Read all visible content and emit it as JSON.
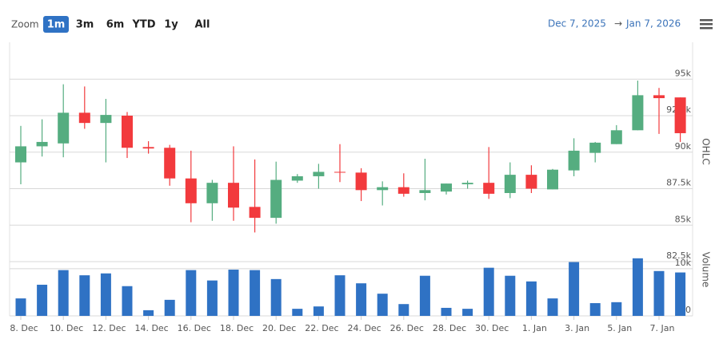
{
  "toolbar": {
    "zoom_label": "Zoom",
    "buttons": [
      "1m",
      "3m",
      "6m",
      "YTD",
      "1y",
      "All"
    ],
    "selected": 0,
    "range_from": "Dec 7, 2025",
    "range_arrow": "→",
    "range_to": "Jan 7, 2026"
  },
  "chart_data": {
    "type": "candlestick",
    "categories": [
      "8. Dec",
      null,
      "10. Dec",
      null,
      "12. Dec",
      null,
      "14. Dec",
      null,
      "16. Dec",
      null,
      "18. Dec",
      null,
      "20. Dec",
      null,
      "22. Dec",
      null,
      "24. Dec",
      null,
      "26. Dec",
      null,
      "28. Dec",
      null,
      "30. Dec",
      null,
      "1. Jan",
      null,
      "3. Jan",
      null,
      "5. Jan",
      null,
      "7. Jan",
      null
    ],
    "open": [
      89300,
      90400,
      90600,
      92700,
      92000,
      92500,
      90350,
      90300,
      88200,
      86500,
      87900,
      86250,
      85500,
      88050,
      88350,
      88650,
      88600,
      87400,
      87600,
      87200,
      87300,
      87800,
      87900,
      87200,
      88450,
      87450,
      88750,
      89950,
      90550,
      91500,
      93900,
      93750
    ],
    "high": [
      91800,
      92250,
      94650,
      94500,
      93650,
      92750,
      90750,
      90500,
      90100,
      88100,
      90400,
      89500,
      89350,
      88500,
      89200,
      90550,
      88900,
      88000,
      88550,
      89550,
      87850,
      88050,
      90350,
      89300,
      89100,
      88850,
      90950,
      90700,
      91850,
      94900,
      94400,
      93750
    ],
    "low": [
      87800,
      89700,
      89650,
      91600,
      89300,
      89600,
      89900,
      87700,
      85200,
      85300,
      85300,
      84500,
      85100,
      87900,
      87500,
      87950,
      86650,
      86350,
      86950,
      86700,
      87100,
      87500,
      86800,
      86850,
      87200,
      87450,
      88350,
      89300,
      90550,
      91500,
      91250,
      90700
    ],
    "close": [
      90400,
      90700,
      92700,
      92000,
      92550,
      90300,
      90250,
      88200,
      86500,
      87900,
      86200,
      85500,
      88100,
      88350,
      88650,
      88600,
      87400,
      87600,
      87150,
      87400,
      87850,
      87900,
      87150,
      88450,
      87500,
      88800,
      90100,
      90650,
      91500,
      93900,
      93700,
      91300
    ],
    "ylim": [
      82500,
      97500
    ],
    "yticks": [
      {
        "value": 82500,
        "label": "82.5k"
      },
      {
        "value": 85000,
        "label": "85k"
      },
      {
        "value": 87500,
        "label": "87.5k"
      },
      {
        "value": 90000,
        "label": "90k"
      },
      {
        "value": 92500,
        "label": "92.5k"
      },
      {
        "value": 95000,
        "label": "95k"
      }
    ],
    "y_axis_title": "OHLC",
    "up_color": "#55ad80",
    "down_color": "#f23a3d",
    "grid": true,
    "volume": {
      "title": "Volume",
      "color": "#2f72c4",
      "values": [
        3700,
        6600,
        9700,
        8600,
        9000,
        6300,
        1200,
        3400,
        9700,
        7500,
        9800,
        9700,
        7800,
        1500,
        2000,
        8600,
        6900,
        4700,
        2500,
        8500,
        1700,
        1500,
        10200,
        8500,
        7300,
        3700,
        11400,
        2700,
        2900,
        12200,
        9500,
        9200
      ],
      "ylim": [
        0,
        12000
      ],
      "yticks": [
        0,
        {
          "value": 10000,
          "label": "10k"
        }
      ]
    }
  }
}
